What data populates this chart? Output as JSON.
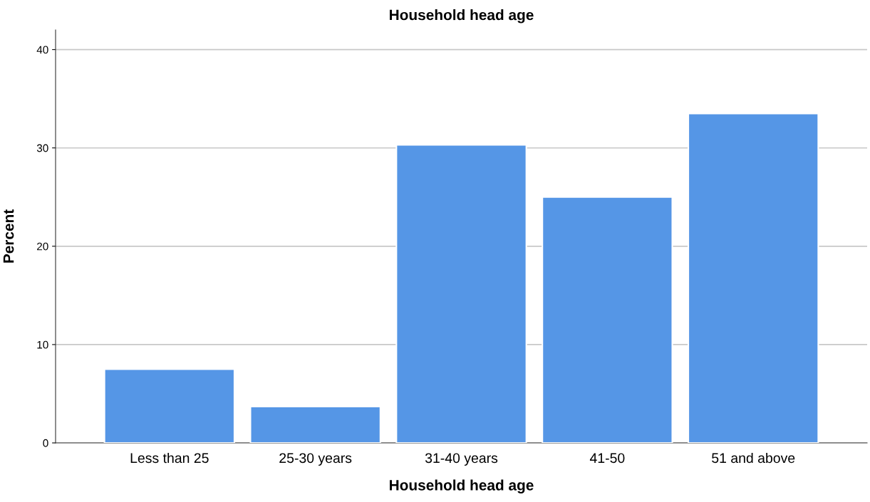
{
  "chart_data": {
    "type": "bar",
    "title": "Household head age",
    "xlabel": "Household head age",
    "ylabel": "Percent",
    "categories": [
      "Less than 25",
      "25-30 years",
      "31-40 years",
      "41-50",
      "51 and above"
    ],
    "values": [
      7.5,
      3.7,
      30.3,
      25.0,
      33.5
    ],
    "color": "#5596e6",
    "ylim": [
      0,
      42
    ],
    "yticks": [
      0,
      10,
      20,
      30,
      40
    ],
    "grid": "y"
  }
}
